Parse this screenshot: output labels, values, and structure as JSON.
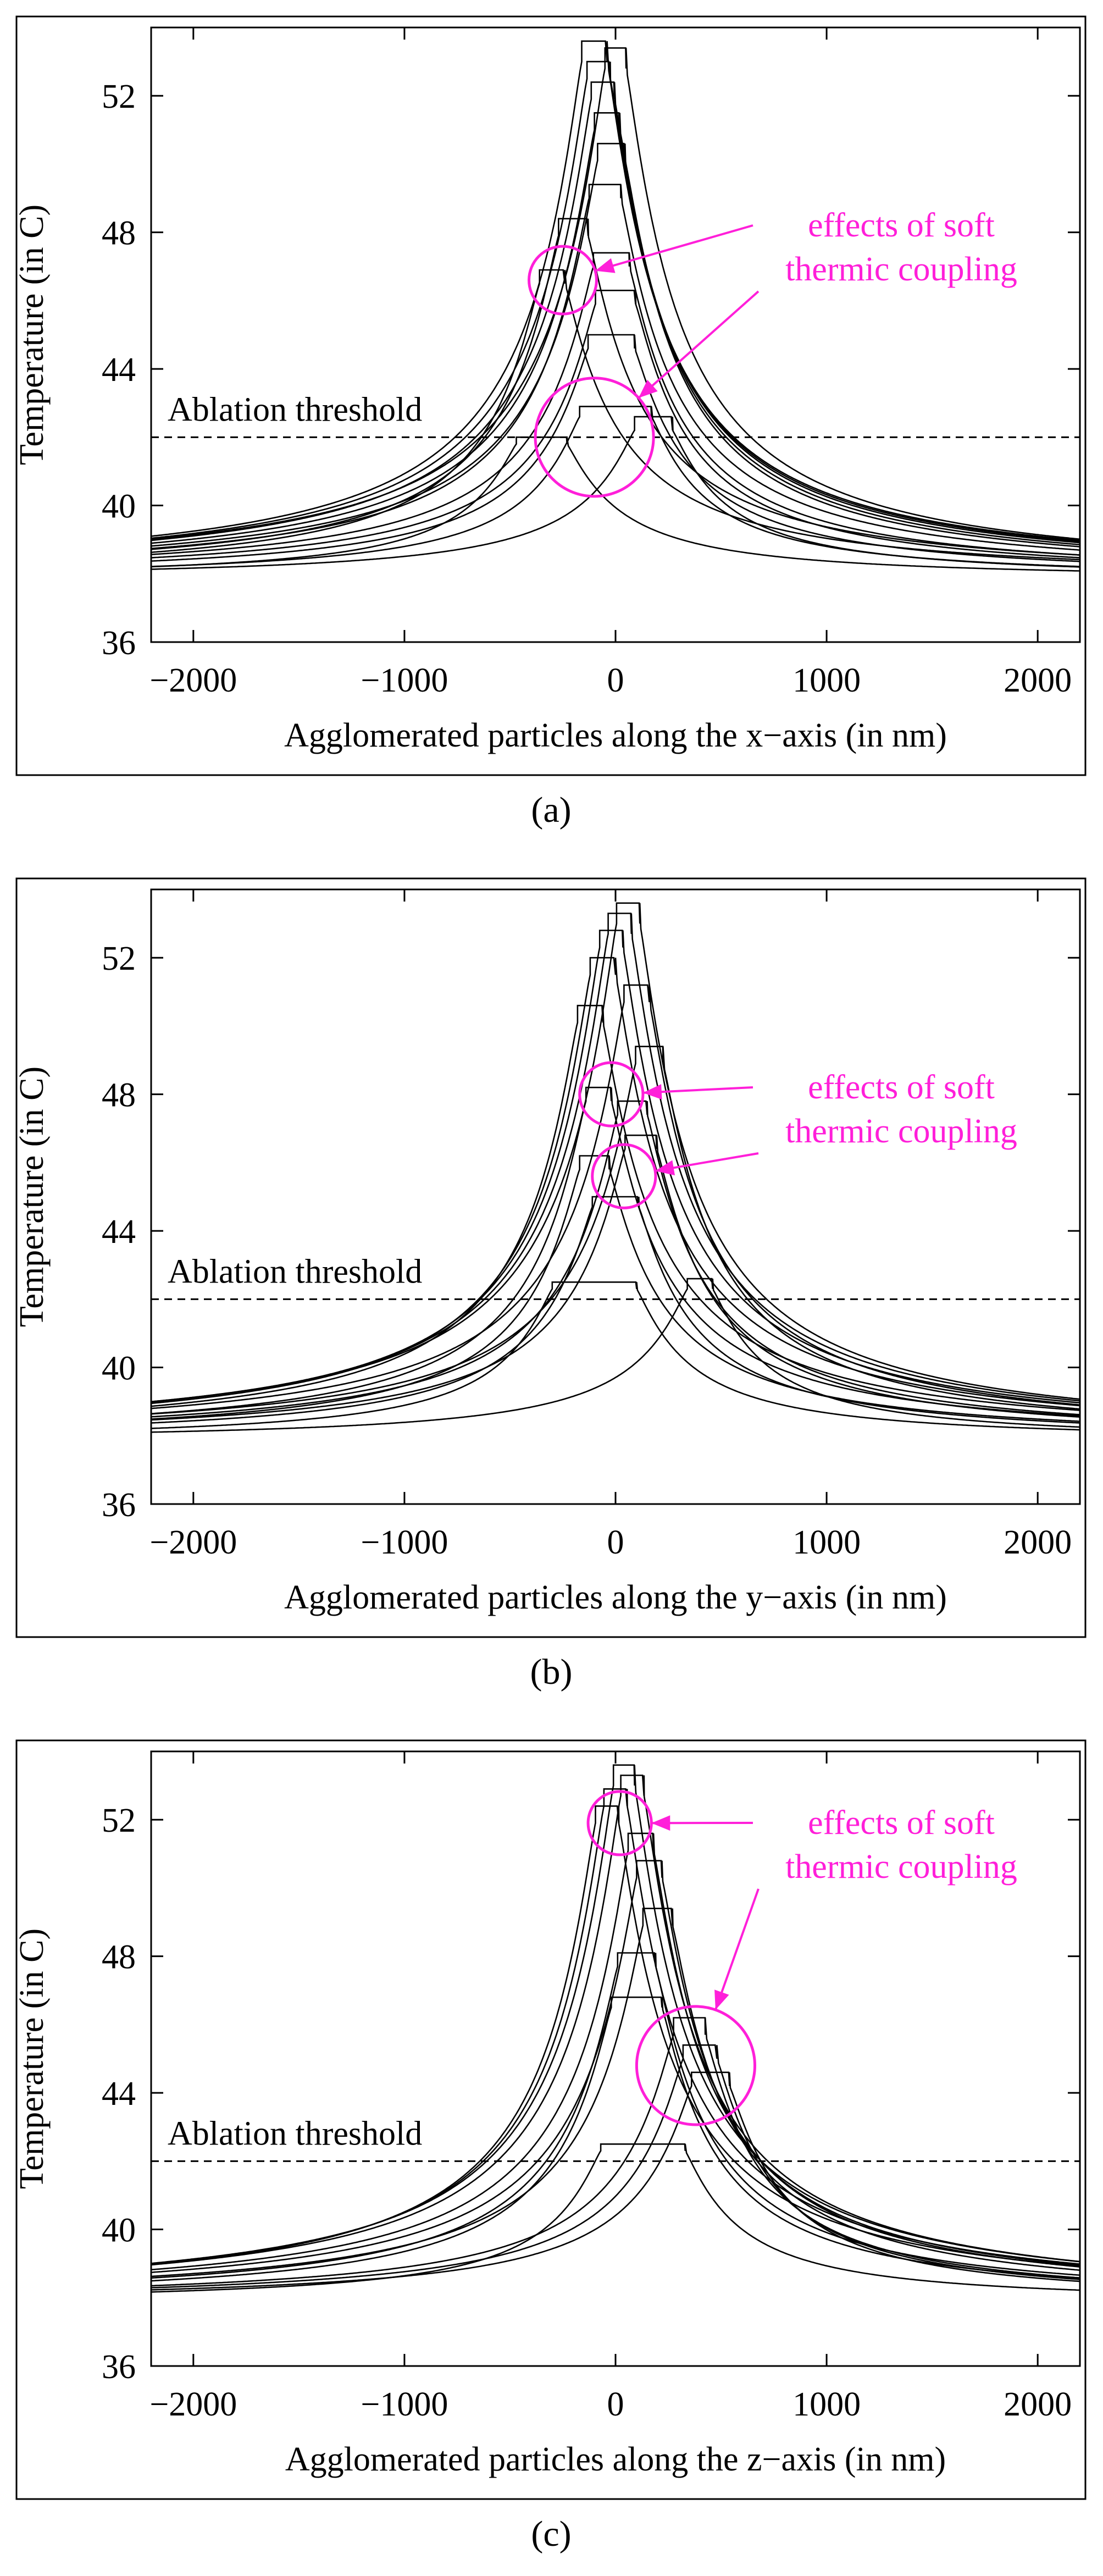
{
  "chart_data": [
    {
      "type": "line",
      "panel_label": "(a)",
      "xlabel": "Agglomerated particles along the x−axis (in nm)",
      "ylabel": "Temperature (in C)",
      "xlim": [
        -2200,
        2200
      ],
      "ylim": [
        36,
        54
      ],
      "xticks": [
        -2000,
        -1000,
        0,
        1000,
        2000
      ],
      "xtick_labels": [
        "−2000",
        "−1000",
        "0",
        "1000",
        "2000"
      ],
      "yticks": [
        36,
        40,
        44,
        48,
        52
      ],
      "ytick_labels": [
        "36",
        "40",
        "44",
        "48",
        "52"
      ],
      "threshold": {
        "y": 42,
        "label": "Ablation threshold",
        "style": "dashed"
      },
      "annotation": {
        "text_lines": [
          "effects of soft",
          "thermic coupling"
        ],
        "circles": [
          {
            "cx": -250,
            "cy": 46.6,
            "r": 160
          },
          {
            "cx": -100,
            "cy": 42.0,
            "r": 280
          }
        ],
        "color": "#ff1fd9"
      },
      "series": [
        {
          "center": -100,
          "peak": 53.6,
          "half_width": 60,
          "step_amp": 0.6
        },
        {
          "center": 0,
          "peak": 53.4,
          "half_width": 50,
          "step_amp": 0.6
        },
        {
          "center": -80,
          "peak": 53.0,
          "half_width": 55,
          "step_amp": 0.5
        },
        {
          "center": -60,
          "peak": 52.4,
          "half_width": 55,
          "step_amp": 0.5
        },
        {
          "center": -40,
          "peak": 51.5,
          "half_width": 60,
          "step_amp": 0.5
        },
        {
          "center": -20,
          "peak": 50.6,
          "half_width": 65,
          "step_amp": 0.5
        },
        {
          "center": -200,
          "peak": 48.4,
          "half_width": 70,
          "step_amp": 0.5
        },
        {
          "center": -50,
          "peak": 49.4,
          "half_width": 75,
          "step_amp": 0.4
        },
        {
          "center": -20,
          "peak": 47.4,
          "half_width": 85,
          "step_amp": 0.4
        },
        {
          "center": 0,
          "peak": 46.3,
          "half_width": 95,
          "step_amp": 0.4
        },
        {
          "center": -300,
          "peak": 46.9,
          "half_width": 60,
          "step_amp": 0.4
        },
        {
          "center": -20,
          "peak": 45.0,
          "half_width": 110,
          "step_amp": 0.4
        },
        {
          "center": 0,
          "peak": 42.9,
          "half_width": 170,
          "step_amp": 0.3
        },
        {
          "center": 180,
          "peak": 42.6,
          "half_width": 90,
          "step_amp": 0.4
        },
        {
          "center": -350,
          "peak": 42.0,
          "half_width": 120,
          "step_amp": 0.2
        }
      ]
    },
    {
      "type": "line",
      "panel_label": "(b)",
      "xlabel": "Agglomerated particles along the y−axis (in nm)",
      "ylabel": "Temperature (in C)",
      "xlim": [
        -2200,
        2200
      ],
      "ylim": [
        36,
        54
      ],
      "xticks": [
        -2000,
        -1000,
        0,
        1000,
        2000
      ],
      "xtick_labels": [
        "−2000",
        "−1000",
        "0",
        "1000",
        "2000"
      ],
      "yticks": [
        36,
        40,
        44,
        48,
        52
      ],
      "ytick_labels": [
        "36",
        "40",
        "44",
        "48",
        "52"
      ],
      "threshold": {
        "y": 42,
        "label": "Ablation threshold",
        "style": "dashed"
      },
      "annotation": {
        "text_lines": [
          "effects of soft",
          "thermic coupling"
        ],
        "circles": [
          {
            "cx": -20,
            "cy": 48.0,
            "r": 150
          },
          {
            "cx": 40,
            "cy": 45.6,
            "r": 150
          }
        ],
        "color": "#ff1fd9"
      },
      "series": [
        {
          "center": 60,
          "peak": 53.6,
          "half_width": 55,
          "step_amp": 0.6
        },
        {
          "center": 20,
          "peak": 53.3,
          "half_width": 55,
          "step_amp": 0.6
        },
        {
          "center": -20,
          "peak": 52.8,
          "half_width": 55,
          "step_amp": 0.5
        },
        {
          "center": -60,
          "peak": 52.0,
          "half_width": 60,
          "step_amp": 0.5
        },
        {
          "center": 100,
          "peak": 51.2,
          "half_width": 60,
          "step_amp": 0.5
        },
        {
          "center": -120,
          "peak": 50.6,
          "half_width": 60,
          "step_amp": 0.5
        },
        {
          "center": 160,
          "peak": 49.4,
          "half_width": 65,
          "step_amp": 0.5
        },
        {
          "center": -80,
          "peak": 48.2,
          "half_width": 60,
          "step_amp": 0.4
        },
        {
          "center": 80,
          "peak": 47.8,
          "half_width": 70,
          "step_amp": 0.4
        },
        {
          "center": 120,
          "peak": 46.8,
          "half_width": 75,
          "step_amp": 0.4
        },
        {
          "center": -100,
          "peak": 46.2,
          "half_width": 70,
          "step_amp": 0.4
        },
        {
          "center": 0,
          "peak": 45.0,
          "half_width": 110,
          "step_amp": 0.3
        },
        {
          "center": 400,
          "peak": 42.6,
          "half_width": 60,
          "step_amp": 0.3
        },
        {
          "center": -100,
          "peak": 42.5,
          "half_width": 200,
          "step_amp": 0.2
        }
      ]
    },
    {
      "type": "line",
      "panel_label": "(c)",
      "xlabel": "Agglomerated particles along the z−axis (in nm)",
      "ylabel": "Temperature (in C)",
      "xlim": [
        -2200,
        2200
      ],
      "ylim": [
        36,
        54
      ],
      "xticks": [
        -2000,
        -1000,
        0,
        1000,
        2000
      ],
      "xtick_labels": [
        "−2000",
        "−1000",
        "0",
        "1000",
        "2000"
      ],
      "yticks": [
        36,
        40,
        44,
        48,
        52
      ],
      "ytick_labels": [
        "36",
        "40",
        "44",
        "48",
        "52"
      ],
      "threshold": {
        "y": 42,
        "label": "Ablation threshold",
        "style": "dashed"
      },
      "annotation": {
        "text_lines": [
          "effects of soft",
          "thermic coupling"
        ],
        "circles": [
          {
            "cx": 20,
            "cy": 51.9,
            "r": 150
          },
          {
            "cx": 380,
            "cy": 44.8,
            "r": 280
          }
        ],
        "color": "#ff1fd9"
      },
      "series": [
        {
          "center": 40,
          "peak": 53.6,
          "half_width": 50,
          "step_amp": 0.6
        },
        {
          "center": 80,
          "peak": 53.3,
          "half_width": 55,
          "step_amp": 0.6
        },
        {
          "center": 0,
          "peak": 52.9,
          "half_width": 55,
          "step_amp": 0.5
        },
        {
          "center": -40,
          "peak": 52.4,
          "half_width": 55,
          "step_amp": 0.5
        },
        {
          "center": 120,
          "peak": 51.6,
          "half_width": 60,
          "step_amp": 0.5
        },
        {
          "center": 160,
          "peak": 50.8,
          "half_width": 60,
          "step_amp": 0.5
        },
        {
          "center": 200,
          "peak": 49.4,
          "half_width": 70,
          "step_amp": 0.5
        },
        {
          "center": 100,
          "peak": 48.1,
          "half_width": 90,
          "step_amp": 0.4
        },
        {
          "center": 350,
          "peak": 46.2,
          "half_width": 75,
          "step_amp": 0.5
        },
        {
          "center": 400,
          "peak": 45.4,
          "half_width": 80,
          "step_amp": 0.4
        },
        {
          "center": 450,
          "peak": 44.6,
          "half_width": 90,
          "step_amp": 0.4
        },
        {
          "center": 100,
          "peak": 46.8,
          "half_width": 120,
          "step_amp": 0.3
        },
        {
          "center": 130,
          "peak": 42.5,
          "half_width": 200,
          "step_amp": 0.2
        }
      ]
    }
  ]
}
